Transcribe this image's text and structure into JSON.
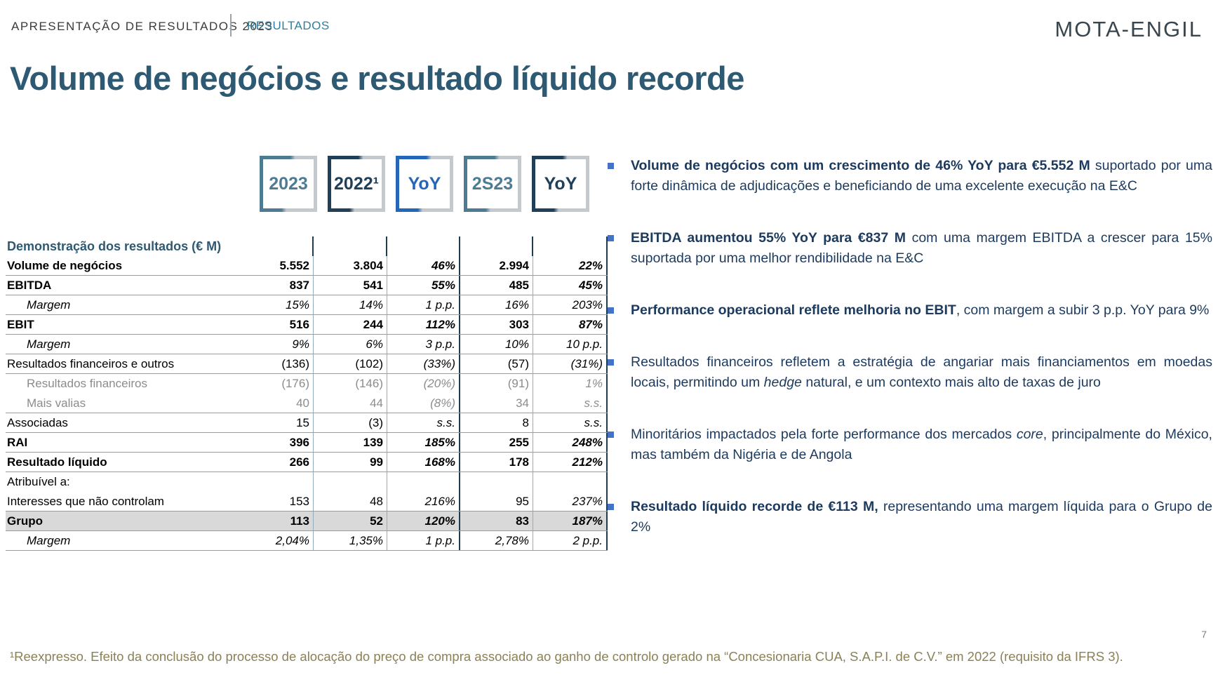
{
  "header": {
    "breadcrumb": "APRESENTAÇÃO DE RESULTADOS 2023",
    "section": "RESULTADOS",
    "logo": "MOTA-ENGIL"
  },
  "title": "Volume de negócios e resultado líquido recorde",
  "columns": [
    {
      "label": "2023",
      "color": "#4e7b94"
    },
    {
      "label": "2022¹",
      "color": "#20405a"
    },
    {
      "label": "YoY",
      "color": "#2566b8"
    },
    {
      "label": "2S23",
      "color": "#4e7b94"
    },
    {
      "label": "YoY",
      "color": "#20405a"
    }
  ],
  "table": {
    "title": "Demonstração dos resultados (€ M)",
    "rows": [
      {
        "label": "Volume de negócios",
        "style": "bold",
        "indent": 0,
        "values": [
          "5.552",
          "3.804",
          "46%",
          "2.994",
          "22%"
        ]
      },
      {
        "label": "EBITDA",
        "style": "bold",
        "indent": 0,
        "values": [
          "837",
          "541",
          "55%",
          "485",
          "45%"
        ]
      },
      {
        "label": "Margem",
        "style": "italic",
        "indent": 1,
        "values": [
          "15%",
          "14%",
          "1 p.p.",
          "16%",
          "203%"
        ]
      },
      {
        "label": "EBIT",
        "style": "bold",
        "indent": 0,
        "values": [
          "516",
          "244",
          "112%",
          "303",
          "87%"
        ]
      },
      {
        "label": "Margem",
        "style": "italic",
        "indent": 1,
        "values": [
          "9%",
          "6%",
          "3 p.p.",
          "10%",
          "10 p.p."
        ]
      },
      {
        "label": "Resultados financeiros e outros",
        "style": "regular",
        "indent": 0,
        "values": [
          "(136)",
          "(102)",
          "(33%)",
          "(57)",
          "(31%)"
        ]
      },
      {
        "label": "Resultados financeiros",
        "style": "gray",
        "indent": 1,
        "no_line": true,
        "values": [
          "(176)",
          "(146)",
          "(20%)",
          "(91)",
          "1%"
        ]
      },
      {
        "label": "Mais valias",
        "style": "gray",
        "indent": 1,
        "values": [
          "40",
          "44",
          "(8%)",
          "34",
          "s.s."
        ]
      },
      {
        "label": "Associadas",
        "style": "regular",
        "indent": 0,
        "values": [
          "15",
          "(3)",
          "s.s.",
          "8",
          "s.s."
        ]
      },
      {
        "label": "RAI",
        "style": "bold",
        "indent": 0,
        "values": [
          "396",
          "139",
          "185%",
          "255",
          "248%"
        ]
      },
      {
        "label": "Resultado líquido",
        "style": "bold",
        "indent": 0,
        "values": [
          "266",
          "99",
          "168%",
          "178",
          "212%"
        ]
      },
      {
        "label": "Atribuível a:",
        "style": "regular",
        "indent": 0,
        "no_line": true,
        "values": [
          "",
          "",
          "",
          "",
          ""
        ]
      },
      {
        "label": "Interesses que não controlam",
        "style": "regular",
        "indent": 0,
        "values": [
          "153",
          "48",
          "216%",
          "95",
          "237%"
        ]
      },
      {
        "label": "Grupo",
        "style": "bold",
        "indent": 0,
        "highlight": true,
        "values": [
          "113",
          "52",
          "120%",
          "83",
          "187%"
        ]
      },
      {
        "label": "Margem",
        "style": "italic",
        "indent": 1,
        "values": [
          "2,04%",
          "1,35%",
          "1 p.p.",
          "2,78%",
          "2 p.p."
        ]
      }
    ]
  },
  "bullets": [
    {
      "segments": [
        {
          "t": "Volume de negócios com um crescimento de 46% YoY para €5.552 M",
          "s": "b"
        },
        {
          "t": " suportado por uma forte dinâmica de adjudicações e beneficiando de uma excelente execução na E&C",
          "s": "r"
        }
      ]
    },
    {
      "segments": [
        {
          "t": "EBITDA aumentou 55% YoY para €837 M",
          "s": "b"
        },
        {
          "t": " com uma margem EBITDA a crescer para 15% suportada por uma melhor rendibilidade na E&C",
          "s": "r"
        }
      ]
    },
    {
      "segments": [
        {
          "t": "Performance operacional reflete melhoria no EBIT",
          "s": "b"
        },
        {
          "t": ", com margem a subir 3 p.p. YoY para 9%",
          "s": "r"
        }
      ]
    },
    {
      "segments": [
        {
          "t": "Resultados financeiros refletem a estratégia de angariar mais financiamentos em moedas locais, permitindo um ",
          "s": "r"
        },
        {
          "t": "hedge",
          "s": "i"
        },
        {
          "t": " natural,  e um contexto mais alto de taxas de juro",
          "s": "r"
        }
      ]
    },
    {
      "segments": [
        {
          "t": "Minoritários impactados pela forte performance dos mercados ",
          "s": "r"
        },
        {
          "t": "core",
          "s": "i"
        },
        {
          "t": ", principalmente do México, mas também da Nigéria e de Angola",
          "s": "r"
        }
      ]
    },
    {
      "segments": [
        {
          "t": "Resultado líquido recorde de €113 M,",
          "s": "b"
        },
        {
          "t": " representando uma margem líquida para o Grupo de 2%",
          "s": "r"
        }
      ]
    }
  ],
  "footnote": "¹Reexpresso. Efeito da conclusão do processo de alocação do preço de compra associado ao ganho de controlo gerado na “Concesionaria CUA, S.A.P.I. de C.V.” em 2022 (requisito da IFRS 3).",
  "page_number": "7",
  "colors": {
    "title": "#2d5972",
    "section_tab": "#2e7f9e",
    "bullet_text": "#1c3a5e",
    "bullet_marker": "#4472c4",
    "footnote": "#8a8157",
    "highlight_row_bg": "#d9d9d9",
    "divider_light": "#93acbb",
    "divider_dark": "#203c52",
    "box_gray": "#c3c9cd"
  }
}
